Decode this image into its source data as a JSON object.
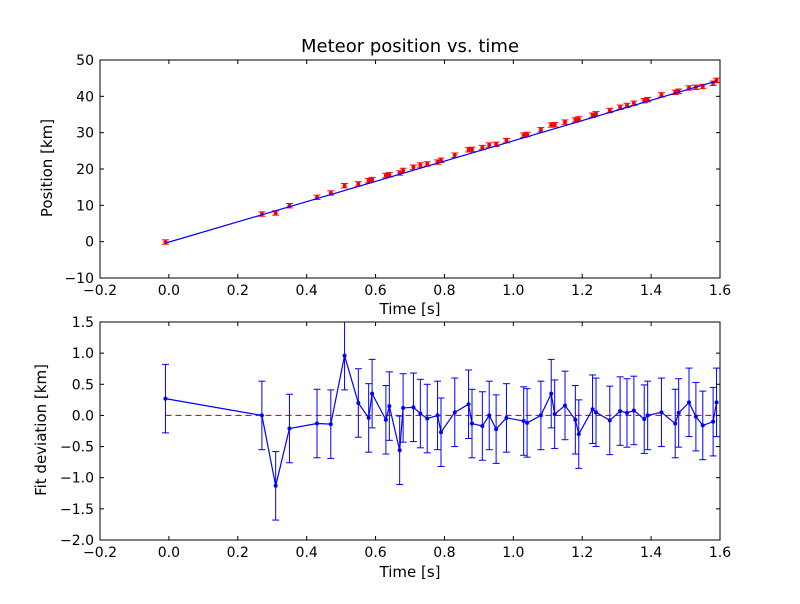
{
  "chart_data": [
    {
      "type": "scatter",
      "title": "Meteor position vs. time",
      "xlabel": "Time [s]",
      "ylabel": "Position [km]",
      "xlim": [
        -0.2,
        1.6
      ],
      "ylim": [
        -10,
        50
      ],
      "xticks": [
        "−0.2",
        "0.0",
        "0.2",
        "0.4",
        "0.6",
        "0.8",
        "1.0",
        "1.2",
        "1.4",
        "1.6"
      ],
      "xtick_values": [
        -0.2,
        0.0,
        0.2,
        0.4,
        0.6,
        0.8,
        1.0,
        1.2,
        1.4,
        1.6
      ],
      "yticks": [
        "−10",
        "0",
        "10",
        "20",
        "30",
        "40",
        "50"
      ],
      "ytick_values": [
        -10,
        0,
        10,
        20,
        30,
        40,
        50
      ],
      "grid": false,
      "series": [
        {
          "kind": "errorbar",
          "color": "#ff0000",
          "x": [
            -0.01,
            0.27,
            0.31,
            0.35,
            0.43,
            0.47,
            0.51,
            0.55,
            0.58,
            0.59,
            0.63,
            0.64,
            0.67,
            0.68,
            0.71,
            0.73,
            0.75,
            0.78,
            0.79,
            0.83,
            0.87,
            0.88,
            0.91,
            0.93,
            0.95,
            0.98,
            1.03,
            1.04,
            1.08,
            1.11,
            1.12,
            1.15,
            1.18,
            1.19,
            1.23,
            1.24,
            1.28,
            1.31,
            1.33,
            1.35,
            1.38,
            1.39,
            1.43,
            1.47,
            1.48,
            1.51,
            1.53,
            1.55,
            1.58,
            1.59
          ],
          "y": [
            -0.1,
            7.6,
            7.9,
            9.9,
            12.2,
            13.4,
            15.4,
            15.9,
            16.8,
            17.1,
            18.2,
            18.4,
            18.9,
            19.6,
            20.5,
            21.1,
            21.4,
            21.9,
            22.4,
            23.8,
            25.3,
            25.4,
            25.9,
            26.6,
            26.8,
            27.8,
            29.3,
            29.5,
            30.8,
            32.1,
            32.2,
            32.9,
            33.5,
            33.8,
            34.8,
            35.2,
            36.1,
            37.0,
            37.5,
            38.1,
            38.8,
            39.1,
            40.4,
            41.1,
            41.4,
            42.3,
            42.5,
            42.7,
            43.6,
            44.4
          ],
          "yerr": 0.6
        },
        {
          "kind": "line",
          "color": "#0000ff",
          "x": [
            -0.01,
            1.59
          ],
          "y": [
            -0.4,
            44.2
          ]
        }
      ]
    },
    {
      "type": "line",
      "title": "",
      "xlabel": "Time [s]",
      "ylabel": "Fit deviation [km]",
      "xlim": [
        -0.2,
        1.6
      ],
      "ylim": [
        -2.0,
        1.5
      ],
      "xticks": [
        "−0.2",
        "0.0",
        "0.2",
        "0.4",
        "0.6",
        "0.8",
        "1.0",
        "1.2",
        "1.4",
        "1.6"
      ],
      "xtick_values": [
        -0.2,
        0.0,
        0.2,
        0.4,
        0.6,
        0.8,
        1.0,
        1.2,
        1.4,
        1.6
      ],
      "yticks": [
        "−2.0",
        "−1.5",
        "−1.0",
        "−0.5",
        "0.0",
        "0.5",
        "1.0",
        "1.5"
      ],
      "ytick_values": [
        -2.0,
        -1.5,
        -1.0,
        -0.5,
        0.0,
        0.5,
        1.0,
        1.5
      ],
      "grid": false,
      "reference_line": {
        "y": 0.0,
        "color": "#ff0000",
        "style": "dashed"
      },
      "series": [
        {
          "kind": "errorbar-line",
          "color": "#0000ff",
          "x": [
            -0.01,
            0.27,
            0.31,
            0.35,
            0.43,
            0.47,
            0.51,
            0.55,
            0.58,
            0.59,
            0.63,
            0.64,
            0.67,
            0.68,
            0.71,
            0.73,
            0.75,
            0.78,
            0.79,
            0.83,
            0.87,
            0.88,
            0.91,
            0.93,
            0.95,
            0.98,
            1.03,
            1.04,
            1.08,
            1.11,
            1.12,
            1.15,
            1.18,
            1.19,
            1.23,
            1.24,
            1.28,
            1.31,
            1.33,
            1.35,
            1.38,
            1.39,
            1.43,
            1.47,
            1.48,
            1.51,
            1.53,
            1.55,
            1.58,
            1.59
          ],
          "y": [
            0.27,
            0.0,
            -1.13,
            -0.21,
            -0.13,
            -0.14,
            0.96,
            0.2,
            -0.04,
            0.35,
            -0.07,
            0.15,
            -0.56,
            0.12,
            0.13,
            0.03,
            -0.05,
            0.0,
            -0.27,
            0.05,
            0.18,
            -0.13,
            -0.17,
            0.0,
            -0.22,
            -0.04,
            -0.09,
            -0.12,
            0.0,
            0.35,
            0.02,
            0.16,
            -0.07,
            -0.3,
            0.1,
            0.05,
            -0.08,
            0.07,
            0.04,
            0.08,
            -0.06,
            0.0,
            0.05,
            -0.13,
            0.04,
            0.21,
            -0.02,
            -0.16,
            -0.1,
            0.21
          ],
          "yerr": 0.55
        }
      ]
    }
  ]
}
